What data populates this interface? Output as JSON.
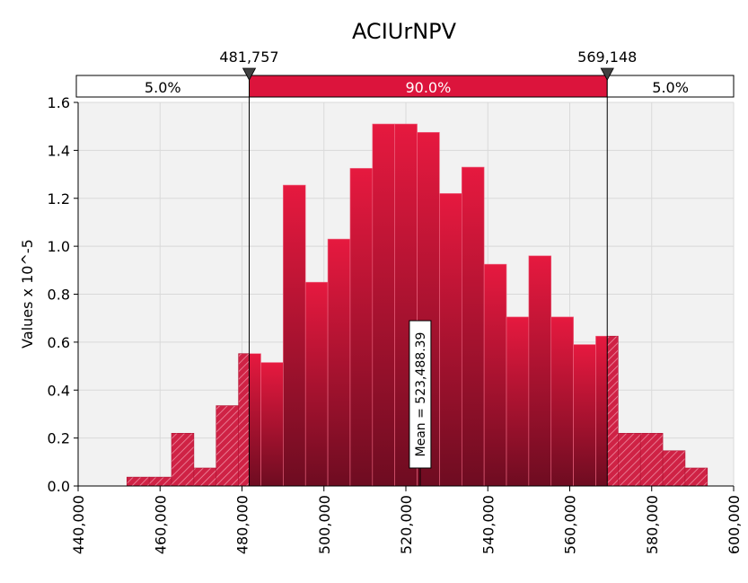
{
  "chart_data": {
    "type": "bar",
    "title": "ACIUrNPV",
    "ylabel": "Values x 10^-5",
    "xlabel": "",
    "xlim": [
      440000,
      600000
    ],
    "ylim": [
      0,
      1.6
    ],
    "x_ticks": [
      440000,
      460000,
      480000,
      500000,
      520000,
      540000,
      560000,
      580000,
      600000
    ],
    "x_tick_labels": [
      "440,000",
      "460,000",
      "480,000",
      "500,000",
      "520,000",
      "540,000",
      "560,000",
      "580,000",
      "600,000"
    ],
    "y_ticks": [
      0,
      0.2,
      0.4,
      0.6,
      0.8,
      1.0,
      1.2,
      1.4,
      1.6
    ],
    "y_tick_labels": [
      "0.0",
      "0.2",
      "0.4",
      "0.6",
      "0.8",
      "1.0",
      "1.2",
      "1.4",
      "1.6"
    ],
    "grid": true,
    "bin_edges": [
      451900,
      457350,
      462800,
      468250,
      473700,
      479150,
      484600,
      490050,
      495500,
      500950,
      506400,
      511850,
      517300,
      522750,
      528200,
      533650,
      539100,
      544550,
      550000,
      555450,
      560900,
      566350,
      571800,
      577250,
      582700,
      588150,
      593600
    ],
    "values": [
      0.037,
      0.037,
      0.22,
      0.075,
      0.335,
      0.552,
      0.515,
      1.255,
      0.85,
      1.03,
      1.325,
      1.51,
      1.51,
      1.475,
      1.22,
      1.33,
      0.925,
      0.705,
      0.96,
      0.705,
      0.59,
      0.625,
      0.22,
      0.22,
      0.147,
      0.075
    ],
    "bar_color": "#dc143c",
    "tail_color": "#dc143c",
    "delimiters": {
      "left": {
        "value": 481757,
        "label": "481,757"
      },
      "right": {
        "value": 569148,
        "label": "569,148"
      }
    },
    "band_labels": {
      "left": "5.0%",
      "middle": "90.0%",
      "right": "5.0%"
    },
    "mean": {
      "value": 523488.39,
      "label": "Mean = 523,488.39"
    }
  },
  "colors": {
    "plot_background": "#f2f2f2",
    "grid": "#d9d9d9",
    "band_fill": "#dc143c",
    "marker": "#404040"
  }
}
